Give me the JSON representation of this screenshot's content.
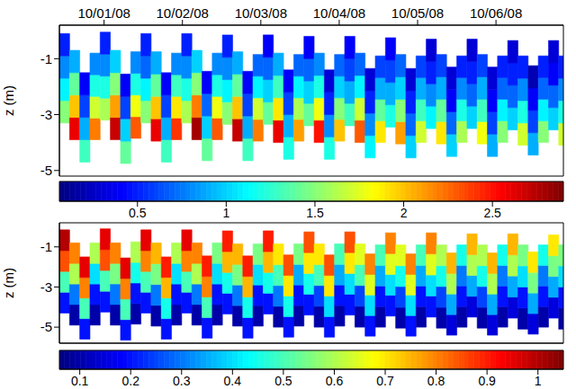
{
  "chart_data": [
    {
      "type": "heatmap",
      "ylabel": "z (m)",
      "xlim": [
        -0.57,
        5.86
      ],
      "ylim": [
        -5.2,
        0.2
      ],
      "xticks": [
        {
          "value": 0,
          "label": "10/01/08"
        },
        {
          "value": 1,
          "label": "10/02/08"
        },
        {
          "value": 2,
          "label": "10/03/08"
        },
        {
          "value": 3,
          "label": "10/04/08"
        },
        {
          "value": 4,
          "label": "10/05/08"
        },
        {
          "value": 5,
          "label": "10/06/08"
        }
      ],
      "yticks": [
        -1,
        -3,
        -5
      ],
      "x": [
        -0.57,
        -0.44,
        -0.31,
        -0.18,
        -0.05,
        0.08,
        0.21,
        0.34,
        0.47,
        0.6,
        0.73,
        0.86,
        0.99,
        1.12,
        1.25,
        1.38,
        1.51,
        1.64,
        1.77,
        1.9,
        2.03,
        2.16,
        2.29,
        2.42,
        2.55,
        2.68,
        2.81,
        2.94,
        3.07,
        3.2,
        3.33,
        3.46,
        3.59,
        3.72,
        3.85,
        3.98,
        4.11,
        4.24,
        4.37,
        4.5,
        4.63,
        4.76,
        4.89,
        5.02,
        5.15,
        5.28,
        5.41,
        5.54,
        5.67,
        5.8
      ],
      "top": [
        -0.1,
        -0.7,
        -1.5,
        -0.8,
        -0.05,
        -0.7,
        -1.55,
        -0.75,
        -0.1,
        -0.75,
        -1.5,
        -0.8,
        -0.1,
        -0.7,
        -1.45,
        -0.8,
        -0.15,
        -0.75,
        -1.45,
        -0.85,
        -0.15,
        -0.8,
        -1.4,
        -0.85,
        -0.2,
        -0.8,
        -1.4,
        -0.85,
        -0.2,
        -0.8,
        -1.35,
        -0.9,
        -0.25,
        -0.85,
        -1.35,
        -0.9,
        -0.3,
        -0.85,
        -1.3,
        -0.9,
        -0.3,
        -0.85,
        -1.3,
        -0.9,
        -0.35,
        -0.9,
        -1.25,
        -0.9,
        -0.35,
        -0.9
      ],
      "bottom": [
        -3.3,
        -3.9,
        -4.7,
        -3.9,
        -3.2,
        -3.9,
        -4.75,
        -3.85,
        -3.3,
        -3.95,
        -4.7,
        -3.9,
        -3.3,
        -3.9,
        -4.65,
        -3.9,
        -3.35,
        -3.95,
        -4.65,
        -3.95,
        -3.35,
        -4.0,
        -4.6,
        -3.95,
        -3.4,
        -4.0,
        -4.6,
        -3.95,
        -3.4,
        -4.0,
        -4.55,
        -4.0,
        -3.45,
        -4.05,
        -4.55,
        -4.0,
        -3.5,
        -4.05,
        -4.5,
        -4.0,
        -3.5,
        -4.05,
        -4.5,
        -4.0,
        -3.55,
        -4.1,
        -4.45,
        -4.0,
        -3.55,
        -4.1
      ],
      "cells": [
        [
          1.5,
          1.1,
          0.8,
          0.5
        ],
        [
          2.6,
          2.0,
          1.4,
          0.9
        ],
        [
          1.3,
          0.9,
          0.6,
          0.4
        ],
        [
          2.2,
          1.7,
          1.2,
          0.8
        ],
        [
          1.6,
          1.2,
          0.8,
          0.5
        ],
        [
          2.7,
          2.1,
          1.5,
          1.0
        ],
        [
          1.4,
          1.0,
          0.6,
          0.4
        ],
        [
          2.3,
          1.8,
          1.2,
          0.8
        ],
        [
          1.5,
          1.1,
          0.7,
          0.5
        ],
        [
          2.6,
          2.0,
          1.4,
          0.9
        ],
        [
          1.3,
          0.9,
          0.6,
          0.4
        ],
        [
          2.4,
          1.9,
          1.3,
          0.8
        ],
        [
          1.6,
          1.2,
          0.8,
          0.5
        ],
        [
          2.8,
          2.2,
          1.5,
          1.0
        ],
        [
          1.4,
          1.0,
          0.7,
          0.4
        ],
        [
          2.3,
          1.8,
          1.2,
          0.8
        ],
        [
          1.5,
          1.1,
          0.8,
          0.5
        ],
        [
          2.7,
          2.0,
          1.4,
          0.9
        ],
        [
          1.3,
          0.9,
          0.6,
          0.4
        ],
        [
          2.2,
          1.7,
          1.1,
          0.7
        ],
        [
          1.4,
          1.0,
          0.7,
          0.4
        ],
        [
          2.6,
          1.9,
          1.3,
          0.9
        ],
        [
          1.2,
          0.9,
          0.6,
          0.4
        ],
        [
          2.1,
          1.6,
          1.1,
          0.7
        ],
        [
          1.4,
          1.0,
          0.7,
          0.4
        ],
        [
          2.5,
          1.8,
          1.2,
          0.8
        ],
        [
          1.2,
          0.8,
          0.5,
          0.3
        ],
        [
          2.0,
          1.5,
          1.0,
          0.7
        ],
        [
          1.3,
          0.9,
          0.6,
          0.4
        ],
        [
          2.3,
          1.7,
          1.1,
          0.7
        ],
        [
          1.1,
          0.8,
          0.5,
          0.3
        ],
        [
          1.9,
          1.4,
          0.9,
          0.6
        ],
        [
          1.2,
          0.9,
          0.6,
          0.4
        ],
        [
          2.1,
          1.5,
          1.0,
          0.7
        ],
        [
          1.0,
          0.7,
          0.5,
          0.3
        ],
        [
          1.7,
          1.3,
          0.9,
          0.6
        ],
        [
          1.1,
          0.8,
          0.5,
          0.3
        ],
        [
          1.9,
          1.4,
          0.9,
          0.6
        ],
        [
          1.0,
          0.7,
          0.4,
          0.3
        ],
        [
          1.6,
          1.2,
          0.8,
          0.5
        ],
        [
          1.0,
          0.7,
          0.5,
          0.3
        ],
        [
          1.8,
          1.3,
          0.9,
          0.6
        ],
        [
          0.9,
          0.6,
          0.4,
          0.3
        ],
        [
          1.5,
          1.1,
          0.7,
          0.5
        ],
        [
          1.0,
          0.7,
          0.5,
          0.3
        ],
        [
          1.7,
          1.2,
          0.8,
          0.5
        ],
        [
          0.9,
          0.6,
          0.4,
          0.2
        ],
        [
          1.5,
          1.1,
          0.7,
          0.5
        ],
        [
          1.0,
          0.7,
          0.4,
          0.3
        ],
        [
          1.7,
          1.2,
          0.8,
          0.5
        ]
      ],
      "colorbar_range": [
        0.06,
        2.9
      ],
      "colorbar_ticks": [
        0.5,
        1,
        1.5,
        2,
        2.5
      ]
    },
    {
      "type": "heatmap",
      "ylabel": "z (m)",
      "tick_labels": "y",
      "xlim": [
        -0.57,
        5.86
      ],
      "ylim": [
        -5.8,
        0.2
      ],
      "yticks": [
        -1,
        -3,
        -5
      ],
      "x": [
        -0.57,
        -0.44,
        -0.31,
        -0.18,
        -0.05,
        0.08,
        0.21,
        0.34,
        0.47,
        0.6,
        0.73,
        0.86,
        0.99,
        1.12,
        1.25,
        1.38,
        1.51,
        1.64,
        1.77,
        1.9,
        2.03,
        2.16,
        2.29,
        2.42,
        2.55,
        2.68,
        2.81,
        2.94,
        3.07,
        3.2,
        3.33,
        3.46,
        3.59,
        3.72,
        3.85,
        3.98,
        4.11,
        4.24,
        4.37,
        4.5,
        4.63,
        4.76,
        4.89,
        5.02,
        5.15,
        5.28,
        5.41,
        5.54,
        5.67,
        5.8
      ],
      "top": [
        -0.15,
        -0.8,
        -1.5,
        -0.8,
        -0.1,
        -0.8,
        -1.55,
        -0.75,
        -0.15,
        -0.8,
        -1.5,
        -0.8,
        -0.15,
        -0.8,
        -1.45,
        -0.8,
        -0.2,
        -0.85,
        -1.45,
        -0.85,
        -0.2,
        -0.85,
        -1.4,
        -0.85,
        -0.25,
        -0.85,
        -1.4,
        -0.85,
        -0.25,
        -0.85,
        -1.35,
        -0.9,
        -0.3,
        -0.9,
        -1.35,
        -0.9,
        -0.3,
        -0.9,
        -1.3,
        -0.9,
        -0.35,
        -0.9,
        -1.3,
        -0.9,
        -0.35,
        -0.9,
        -1.25,
        -0.9,
        -0.4,
        -0.9
      ],
      "bottom": [
        -4.3,
        -4.9,
        -5.6,
        -4.9,
        -4.25,
        -4.9,
        -5.65,
        -4.85,
        -4.3,
        -4.95,
        -5.6,
        -4.9,
        -4.3,
        -4.9,
        -5.55,
        -4.9,
        -4.35,
        -4.95,
        -5.55,
        -4.95,
        -4.35,
        -5.0,
        -5.5,
        -4.95,
        -4.4,
        -5.0,
        -5.5,
        -4.95,
        -4.4,
        -5.0,
        -5.45,
        -5.0,
        -4.45,
        -5.05,
        -5.45,
        -5.0,
        -4.5,
        -5.05,
        -5.4,
        -5.0,
        -4.5,
        -5.05,
        -5.4,
        -5.0,
        -4.55,
        -5.1,
        -5.35,
        -5.0,
        -4.55,
        -5.1
      ],
      "cells": [
        [
          0.2,
          0.5,
          0.85,
          1.0
        ],
        [
          0.1,
          0.3,
          0.6,
          0.8
        ],
        [
          0.2,
          0.5,
          0.8,
          0.95
        ],
        [
          0.1,
          0.2,
          0.4,
          0.6
        ],
        [
          0.2,
          0.5,
          0.85,
          0.95
        ],
        [
          0.1,
          0.3,
          0.55,
          0.8
        ],
        [
          0.2,
          0.5,
          0.8,
          0.95
        ],
        [
          0.1,
          0.2,
          0.45,
          0.6
        ],
        [
          0.2,
          0.5,
          0.8,
          0.95
        ],
        [
          0.1,
          0.3,
          0.55,
          0.75
        ],
        [
          0.2,
          0.45,
          0.75,
          0.9
        ],
        [
          0.1,
          0.2,
          0.4,
          0.6
        ],
        [
          0.2,
          0.5,
          0.8,
          0.95
        ],
        [
          0.1,
          0.3,
          0.6,
          0.8
        ],
        [
          0.2,
          0.5,
          0.8,
          0.9
        ],
        [
          0.1,
          0.2,
          0.4,
          0.55
        ],
        [
          0.2,
          0.45,
          0.75,
          0.9
        ],
        [
          0.1,
          0.3,
          0.55,
          0.75
        ],
        [
          0.2,
          0.45,
          0.75,
          0.9
        ],
        [
          0.1,
          0.2,
          0.4,
          0.55
        ],
        [
          0.2,
          0.45,
          0.75,
          0.9
        ],
        [
          0.1,
          0.3,
          0.5,
          0.7
        ],
        [
          0.2,
          0.45,
          0.7,
          0.85
        ],
        [
          0.1,
          0.2,
          0.35,
          0.55
        ],
        [
          0.2,
          0.45,
          0.7,
          0.85
        ],
        [
          0.1,
          0.25,
          0.5,
          0.7
        ],
        [
          0.2,
          0.4,
          0.7,
          0.85
        ],
        [
          0.1,
          0.2,
          0.35,
          0.5
        ],
        [
          0.2,
          0.4,
          0.7,
          0.85
        ],
        [
          0.1,
          0.25,
          0.5,
          0.65
        ],
        [
          0.2,
          0.4,
          0.65,
          0.8
        ],
        [
          0.1,
          0.2,
          0.35,
          0.5
        ],
        [
          0.2,
          0.4,
          0.65,
          0.8
        ],
        [
          0.1,
          0.25,
          0.45,
          0.65
        ],
        [
          0.2,
          0.4,
          0.65,
          0.8
        ],
        [
          0.1,
          0.2,
          0.35,
          0.5
        ],
        [
          0.2,
          0.4,
          0.65,
          0.8
        ],
        [
          0.1,
          0.25,
          0.45,
          0.6
        ],
        [
          0.15,
          0.35,
          0.6,
          0.75
        ],
        [
          0.1,
          0.2,
          0.3,
          0.45
        ],
        [
          0.15,
          0.35,
          0.6,
          0.75
        ],
        [
          0.1,
          0.25,
          0.45,
          0.6
        ],
        [
          0.15,
          0.35,
          0.6,
          0.75
        ],
        [
          0.1,
          0.2,
          0.3,
          0.45
        ],
        [
          0.15,
          0.35,
          0.6,
          0.75
        ],
        [
          0.1,
          0.2,
          0.4,
          0.55
        ],
        [
          0.15,
          0.35,
          0.55,
          0.7
        ],
        [
          0.1,
          0.2,
          0.3,
          0.45
        ],
        [
          0.15,
          0.35,
          0.55,
          0.7
        ],
        [
          0.1,
          0.2,
          0.4,
          0.55
        ]
      ],
      "colorbar_range": [
        0.06,
        1.05
      ],
      "colorbar_ticks": [
        0.1,
        0.2,
        0.3,
        0.4,
        0.5,
        0.6,
        0.7,
        0.8,
        0.9,
        1
      ]
    }
  ]
}
